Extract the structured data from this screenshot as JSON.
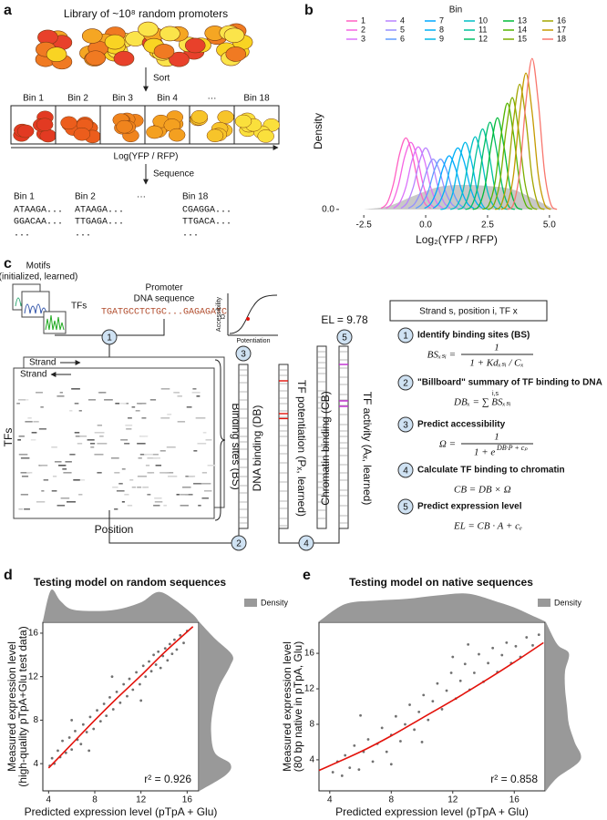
{
  "panel_labels": [
    "a",
    "b",
    "c",
    "d",
    "e"
  ],
  "panel_a": {
    "library_label": "Library of ~10⁸ random promoters",
    "sort_label": "Sort",
    "bins": [
      "Bin 1",
      "Bin 2",
      "Bin 3",
      "Bin 4",
      "···",
      "Bin 18"
    ],
    "axis_label": "Log(YFP / RFP)",
    "sequence_label": "Sequence",
    "sequence_columns": [
      {
        "bin": "Bin 1",
        "reads": [
          "ATAAGA...",
          "GGACAA...",
          "..."
        ]
      },
      {
        "bin": "Bin 2",
        "reads": [
          "ATAAGA...",
          "TTGAGA...",
          "..."
        ]
      },
      {
        "bin": "···",
        "reads": []
      },
      {
        "bin": "Bin 18",
        "reads": [
          "CGAGGA...",
          "TTGACA...",
          "..."
        ]
      }
    ]
  },
  "panel_c": {
    "motifs_label": [
      "Motifs",
      "(initialized, learned)"
    ],
    "tfs_label": "TFs",
    "promoter_label": [
      "Promoter",
      "DNA sequence"
    ],
    "sequence": "TGATGCCTCTGC...GAGAGATC",
    "strand_labels": [
      "Strand",
      "Strand"
    ],
    "heatmap_y_label": "TFs",
    "heatmap_x_label": "Position",
    "binding_sites_label": "Binding sites (BS)",
    "db_label": "DNA binding (DB)",
    "p_label": "TF potentiation (Pₓ, learned)",
    "cb_label": "Chromatin binding (CB)",
    "a_label": "TF activity (Aₓ, learned)",
    "el_label": "EL = 9.78",
    "inset": {
      "y_label": "Accessibility",
      "omega": "Ω",
      "x_label": "Potentiation"
    },
    "flow_steps": [
      "1",
      "2",
      "3",
      "4",
      "5"
    ],
    "definition": "Strand s, position i, TF x",
    "steps": [
      {
        "number": "1",
        "title": "Identify binding sites (BS)",
        "lhs": "BSₓₛᵢ =",
        "numerator": "1",
        "denominator": "1 + Kdₓₛᵢ / Cₓ"
      },
      {
        "number": "2",
        "title": "\"Billboard\" summary of TF binding to DNA",
        "formula": "DBₓ = ∑ BSₓₛᵢ",
        "sum_index": "i,s"
      },
      {
        "number": "3",
        "title": "Predict accessibility",
        "lhs": "Ω =",
        "numerator": "1",
        "denominator": "1 + e",
        "denominator_exponent": "DB·P + cₚ"
      },
      {
        "number": "4",
        "title": "Calculate TF binding to chromatin",
        "formula": "CB = DB × Ω"
      },
      {
        "number": "5",
        "title": "Predict expression level",
        "formula": "EL = CB · A + cₑ"
      }
    ]
  },
  "chart_data": [
    {
      "type": "line",
      "legend_title": "Bin",
      "x_label": "Log₂(YFP / RFP)",
      "y_label": "Density",
      "xlim": [
        -3.5,
        6.0
      ],
      "ylim": [
        -0.05,
        1.45
      ],
      "xticks": [
        -2.5,
        {
          "value": 0,
          "label": "0.0"
        },
        2.5,
        {
          "value": 5,
          "label": "5.0"
        }
      ],
      "yticks": [
        {
          "value": 0,
          "label": "0.0"
        }
      ],
      "background_area": {
        "color": "#c8c8c8",
        "x": [
          -2.5,
          -1.5,
          -0.5,
          0.5,
          1.5,
          2.5,
          3.5,
          4.5,
          5.2
        ],
        "values": [
          0,
          0.03,
          0.12,
          0.2,
          0.22,
          0.21,
          0.18,
          0.08,
          0
        ]
      },
      "series": [
        {
          "name": "1",
          "color": "#FF61C3",
          "x": [
            -1.8,
            -1.55,
            -1.3,
            -1.05,
            -0.8,
            -0.55,
            -0.3,
            -0.05,
            0.2
          ],
          "values": [
            0.01,
            0.06,
            0.23,
            0.5,
            0.64,
            0.5,
            0.23,
            0.06,
            0.01
          ]
        },
        {
          "name": "2",
          "color": "#F564E3",
          "x": [
            -1.6,
            -1.35,
            -1.1,
            -0.85,
            -0.6,
            -0.35,
            -0.1,
            0.15,
            0.4
          ],
          "values": [
            0.01,
            0.06,
            0.22,
            0.47,
            0.6,
            0.47,
            0.22,
            0.06,
            0.01
          ]
        },
        {
          "name": "3",
          "color": "#DB72FB",
          "x": [
            -1.3,
            -1.05,
            -0.8,
            -0.55,
            -0.3,
            -0.05,
            0.2,
            0.45,
            0.7
          ],
          "values": [
            0.01,
            0.06,
            0.2,
            0.44,
            0.56,
            0.44,
            0.2,
            0.06,
            0.01
          ]
        },
        {
          "name": "4",
          "color": "#B983FF",
          "x": [
            -1,
            -0.75,
            -0.5,
            -0.25,
            0,
            0.25,
            0.5,
            0.75,
            1
          ],
          "values": [
            0.01,
            0.06,
            0.2,
            0.43,
            0.55,
            0.43,
            0.2,
            0.06,
            0.01
          ]
        },
        {
          "name": "5",
          "color": "#9590FF",
          "x": [
            -0.7,
            -0.45,
            -0.2,
            0.05,
            0.3,
            0.55,
            0.8,
            1.05,
            1.3
          ],
          "values": [
            0.01,
            0.05,
            0.16,
            0.35,
            0.45,
            0.35,
            0.16,
            0.05,
            0.01
          ]
        },
        {
          "name": "6",
          "color": "#619CFF",
          "x": [
            -0.4,
            -0.15,
            0.1,
            0.35,
            0.6,
            0.85,
            1.1,
            1.35,
            1.6
          ],
          "values": [
            0.01,
            0.05,
            0.16,
            0.35,
            0.45,
            0.35,
            0.16,
            0.05,
            0.01
          ]
        },
        {
          "name": "7",
          "color": "#00A9FF",
          "x": [
            -0.05,
            0.2,
            0.45,
            0.7,
            0.95,
            1.2,
            1.45,
            1.7,
            1.95
          ],
          "values": [
            0.01,
            0.05,
            0.17,
            0.37,
            0.48,
            0.37,
            0.17,
            0.05,
            0.01
          ]
        },
        {
          "name": "8",
          "color": "#00B0F6",
          "x": [
            0.3,
            0.55,
            0.8,
            1.05,
            1.3,
            1.55,
            1.8,
            2.05,
            2.3
          ],
          "values": [
            0.01,
            0.06,
            0.2,
            0.43,
            0.55,
            0.43,
            0.2,
            0.06,
            0.01
          ]
        },
        {
          "name": "9",
          "color": "#00B8E7",
          "x": [
            0.6,
            0.85,
            1.1,
            1.35,
            1.6,
            1.85,
            2.1,
            2.35,
            2.6
          ],
          "values": [
            0,
            0.02,
            0.15,
            0.43,
            0.6,
            0.43,
            0.15,
            0.02,
            0
          ]
        },
        {
          "name": "10",
          "color": "#00BFC4",
          "x": [
            1,
            1.25,
            1.5,
            1.75,
            2,
            2.25,
            2.5,
            2.75,
            3
          ],
          "values": [
            0,
            0.03,
            0.16,
            0.46,
            0.65,
            0.46,
            0.16,
            0.03,
            0
          ]
        },
        {
          "name": "11",
          "color": "#00C19A",
          "x": [
            1.3,
            1.55,
            1.8,
            2.05,
            2.3,
            2.55,
            2.8,
            3.05,
            3.3
          ],
          "values": [
            0,
            0.03,
            0.18,
            0.51,
            0.72,
            0.51,
            0.18,
            0.03,
            0
          ]
        },
        {
          "name": "12",
          "color": "#00BE67",
          "x": [
            1.6,
            1.85,
            2.1,
            2.35,
            2.6,
            2.85,
            3.1,
            3.35,
            3.6
          ],
          "values": [
            0,
            0.03,
            0.2,
            0.55,
            0.78,
            0.55,
            0.2,
            0.03,
            0
          ]
        },
        {
          "name": "13",
          "color": "#00BA38",
          "x": [
            1.9,
            2.15,
            2.4,
            2.65,
            2.9,
            3.15,
            3.4,
            3.65,
            3.9
          ],
          "values": [
            0,
            0.03,
            0.21,
            0.58,
            0.82,
            0.58,
            0.21,
            0.03,
            0
          ]
        },
        {
          "name": "14",
          "color": "#53B400",
          "x": [
            2.3,
            2.55,
            2.8,
            3.05,
            3.3,
            3.55,
            3.8,
            4.05,
            4.3
          ],
          "values": [
            0,
            0.04,
            0.24,
            0.67,
            0.95,
            0.67,
            0.24,
            0.04,
            0
          ]
        },
        {
          "name": "15",
          "color": "#7CAE00",
          "x": [
            2.5,
            2.75,
            3,
            3.25,
            3.5,
            3.75,
            4,
            4.25,
            4.5
          ],
          "values": [
            0,
            0.04,
            0.25,
            0.71,
            1,
            0.71,
            0.25,
            0.04,
            0
          ]
        },
        {
          "name": "16",
          "color": "#A3A500",
          "x": [
            2.8,
            3.05,
            3.3,
            3.55,
            3.8,
            4.05,
            4.3,
            4.55,
            4.8
          ],
          "values": [
            0,
            0.04,
            0.28,
            0.8,
            1.12,
            0.8,
            0.28,
            0.04,
            0
          ]
        },
        {
          "name": "17",
          "color": "#C49A00",
          "x": [
            3.05,
            3.3,
            3.55,
            3.8,
            4.05,
            4.3,
            4.55,
            4.8,
            5.05
          ],
          "values": [
            0,
            0.05,
            0.31,
            0.87,
            1.22,
            0.87,
            0.31,
            0.05,
            0
          ]
        },
        {
          "name": "18",
          "color": "#F8766D",
          "x": [
            3.3,
            3.55,
            3.8,
            4.05,
            4.3,
            4.55,
            4.8,
            5.05,
            5.3
          ],
          "values": [
            0,
            0.05,
            0.34,
            0.96,
            1.35,
            0.96,
            0.34,
            0.05,
            0
          ]
        }
      ]
    },
    {
      "type": "scatter",
      "title": "Testing model on random sequences",
      "x_label": "Predicted expression level (pTpA + Glu)",
      "y_label": [
        "Measured expression level",
        "(high-quality pTpA+Glu test data)"
      ],
      "legend_label": "Density",
      "legend_color": "#999999",
      "annotation": "r² = 0.926",
      "xlim": [
        3.5,
        17.0
      ],
      "ylim": [
        1.5,
        17.0
      ],
      "xticks": [
        4,
        8,
        12,
        16
      ],
      "yticks": [
        4,
        8,
        12,
        16
      ],
      "point_color": "#111111",
      "x": [
        4.1,
        4.3,
        4.5,
        4.8,
        5.0,
        5.2,
        5.5,
        5.8,
        6.0,
        6.3,
        6.5,
        6.8,
        7.0,
        7.3,
        7.6,
        7.9,
        8.2,
        8.5,
        8.8,
        9.0,
        9.3,
        9.6,
        9.9,
        10.2,
        10.5,
        10.8,
        11.0,
        11.3,
        11.6,
        11.9,
        12.2,
        12.4,
        12.7,
        12.9,
        13.1,
        13.3,
        13.5,
        13.7,
        13.9,
        14.1,
        14.3,
        14.5,
        14.7,
        14.9,
        15.1,
        15.4,
        15.7,
        16.0,
        9.5,
        7.5,
        12.0,
        6.0
      ],
      "values": [
        3.8,
        4.5,
        4.0,
        5.2,
        4.6,
        6.1,
        5.0,
        6.4,
        5.3,
        7.0,
        6.2,
        5.8,
        7.6,
        6.9,
        8.3,
        7.2,
        8.9,
        7.9,
        9.5,
        8.4,
        10.1,
        9.0,
        10.6,
        9.6,
        11.3,
        10.2,
        11.8,
        10.8,
        12.4,
        11.3,
        13.0,
        12.0,
        13.4,
        12.5,
        14.0,
        13.1,
        14.3,
        12.8,
        13.9,
        14.6,
        13.5,
        15.0,
        14.1,
        15.4,
        14.5,
        15.8,
        15.1,
        16.2,
        12.0,
        5.2,
        9.8,
        8.0
      ],
      "fit": {
        "color": "#e3120b",
        "x": [
          4,
          6,
          8,
          10,
          12,
          14,
          16.5
        ],
        "values": [
          3.6,
          5.8,
          8.0,
          10.1,
          12.1,
          14.2,
          16.6
        ]
      },
      "x_density": {
        "x": [
          3.5,
          4.2,
          5,
          6,
          8,
          10,
          12,
          13.5,
          15,
          16.5,
          17
        ],
        "values": [
          0,
          0.9,
          0.6,
          0.35,
          0.3,
          0.35,
          0.55,
          0.85,
          0.6,
          0.2,
          0
        ]
      },
      "y_density": {
        "y": [
          1.5,
          3,
          4,
          5,
          7,
          9,
          11,
          13,
          14,
          15.5,
          17
        ],
        "values": [
          0,
          0.7,
          0.8,
          0.4,
          0.3,
          0.35,
          0.5,
          0.8,
          0.85,
          0.4,
          0
        ]
      }
    },
    {
      "type": "scatter",
      "title": "Testing model on native sequences",
      "x_label": "Predicted expression level (pTpA + Glu)",
      "y_label": [
        "Measured expression level",
        "(80 bp native in pTpA, Glu)"
      ],
      "legend_label": "Density",
      "legend_color": "#999999",
      "annotation": "r² = 0.858",
      "xlim": [
        3.3,
        18.0
      ],
      "ylim": [
        0.5,
        19.5
      ],
      "xticks": [
        4,
        8,
        12,
        16
      ],
      "yticks": [
        4,
        8,
        12,
        16
      ],
      "point_color": "#111111",
      "x": [
        4.2,
        4.5,
        4.8,
        5.0,
        5.3,
        5.6,
        5.9,
        6.2,
        6.5,
        6.8,
        7.1,
        7.4,
        7.7,
        8.0,
        8.3,
        8.6,
        8.9,
        9.2,
        9.5,
        9.8,
        10.1,
        10.4,
        10.7,
        11.0,
        11.3,
        11.6,
        11.9,
        12.2,
        12.5,
        12.8,
        13.1,
        13.4,
        13.7,
        14.0,
        14.3,
        14.6,
        14.9,
        15.2,
        15.5,
        15.8,
        16.1,
        16.4,
        16.8,
        17.2,
        17.6,
        6.0,
        10.0,
        13.0,
        8.0,
        12.0
      ],
      "values": [
        2.6,
        3.8,
        2.2,
        4.5,
        3.1,
        5.6,
        2.9,
        4.9,
        6.3,
        3.8,
        5.8,
        7.6,
        4.9,
        6.8,
        8.9,
        6.1,
        8.0,
        10.2,
        7.4,
        9.4,
        11.3,
        8.5,
        10.6,
        12.6,
        9.7,
        11.8,
        13.8,
        10.9,
        12.9,
        14.8,
        11.9,
        13.8,
        15.9,
        12.8,
        14.9,
        16.6,
        13.9,
        15.8,
        17.2,
        14.9,
        16.8,
        15.6,
        17.8,
        16.9,
        18.1,
        9.0,
        6.0,
        17.0,
        3.5,
        15.6
      ],
      "fit": {
        "color": "#e3120b",
        "x": [
          3.3,
          6,
          8,
          10,
          12,
          14,
          16,
          17.9
        ],
        "values": [
          2.8,
          4.9,
          6.7,
          8.7,
          10.7,
          12.8,
          15.0,
          17.2
        ]
      },
      "x_density": {
        "x": [
          3.3,
          5,
          7,
          9,
          11,
          13,
          15,
          16,
          17,
          18
        ],
        "values": [
          0,
          0.5,
          0.6,
          0.65,
          0.75,
          0.8,
          0.55,
          0.4,
          0.2,
          0
        ]
      },
      "y_density": {
        "y": [
          0.5,
          2,
          4,
          6,
          8,
          10,
          12,
          14,
          16,
          17,
          19.5
        ],
        "values": [
          0,
          0.3,
          0.9,
          0.75,
          0.6,
          0.55,
          0.5,
          0.5,
          0.6,
          0.3,
          0
        ]
      }
    }
  ]
}
